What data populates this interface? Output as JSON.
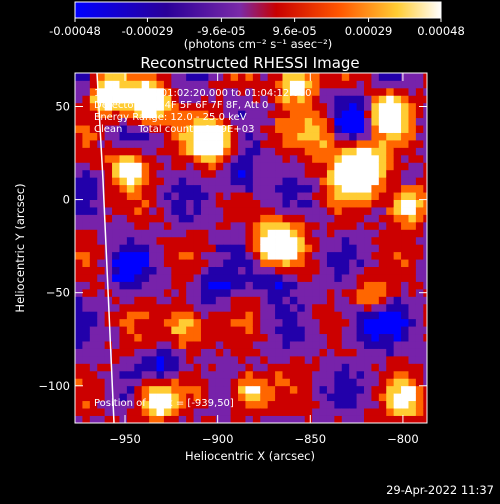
{
  "colorbar": {
    "ticks": [
      "-0.00048",
      "-0.00029",
      "-9.6e-05",
      "9.6e-05",
      "0.00029",
      "0.00048"
    ],
    "tick_values": [
      -0.00048,
      -0.00029,
      -9.6e-05,
      9.6e-05,
      0.00029,
      0.00048
    ],
    "unit_label": "(photons cm⁻² s⁻¹ asec⁻²)",
    "colors": [
      "#0000ff",
      "#2200aa",
      "#7722aa",
      "#cc0000",
      "#ff6600",
      "#ffcc33",
      "#ffffff"
    ]
  },
  "footer": {
    "timestamp": "29-Apr-2022 11:37"
  },
  "chart_data": {
    "type": "heatmap",
    "title": "Reconstructed RHESSI Image",
    "xlabel": "Heliocentric X (arcsec)",
    "ylabel": "Heliocentric Y (arcsec)",
    "xlim": [
      -977,
      -787
    ],
    "ylim": [
      -120,
      68
    ],
    "xticks": [
      -950,
      -900,
      -850,
      -800
    ],
    "yticks": [
      50,
      0,
      -50,
      -100
    ],
    "annotations": {
      "time": "17-Mar-2004 01:02:20.000 to 01:04:12.000",
      "detectors": "Detectors: 3F 4F 5F 6F 7F 8F, Att 0",
      "energy": "Energy Range: 12.0 - 25.0 keV",
      "method": "Clean     Total counts: 1.29E+03",
      "peak": "Position of Peak = [-939,50]"
    },
    "peak": {
      "x": -939,
      "y": 50
    }
  }
}
